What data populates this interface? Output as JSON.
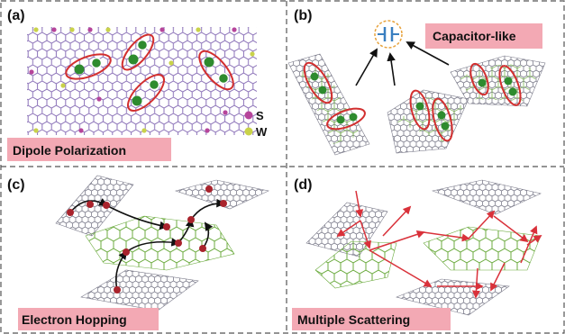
{
  "panels": {
    "a": {
      "label": "(a)",
      "caption": "Dipole Polarization"
    },
    "b": {
      "label": "(b)",
      "caption": "Capacitor-like"
    },
    "c": {
      "label": "(c)",
      "caption": "Electron Hopping"
    },
    "d": {
      "label": "(d)",
      "caption": "Multiple Scattering"
    }
  },
  "legend": {
    "items": [
      {
        "symbol": "S",
        "color": "#b6459b"
      },
      {
        "symbol": "W",
        "color": "#c9d24a"
      }
    ]
  },
  "colors": {
    "divider": "#555555",
    "caption_bg": "#f3a9b4",
    "lattice_purple": "#8b72b8",
    "lattice_gray": "#7d7d8c",
    "lattice_green": "#6cab3f",
    "dipole_ring": "#d22f2f",
    "dipole_dot": "#2e8b2e",
    "hop_dot": "#a9232c",
    "scatter_arrow": "#d9313a",
    "arrow_black": "#111111",
    "capacitor_icon": "#3a7fc0",
    "capacitor_ring": "#e7a23b"
  },
  "icons": [
    "capacitor-icon"
  ]
}
